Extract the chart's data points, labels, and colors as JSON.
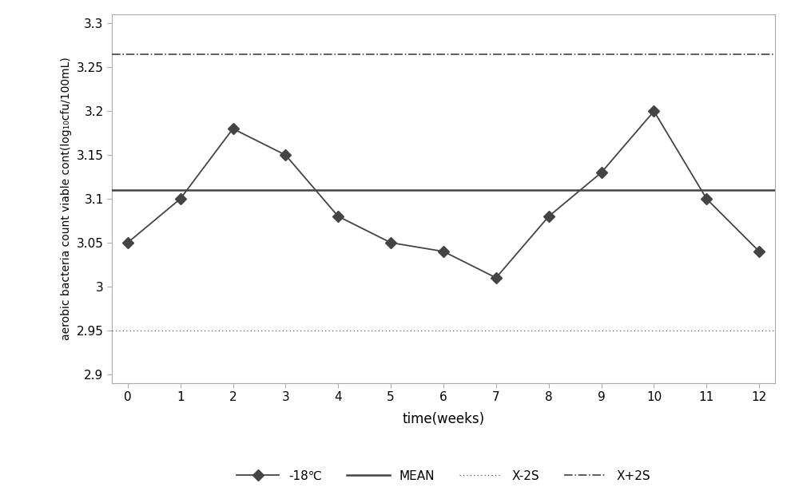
{
  "x": [
    0,
    1,
    2,
    3,
    4,
    5,
    6,
    7,
    8,
    9,
    10,
    11,
    12
  ],
  "y_data": [
    3.05,
    3.1,
    3.18,
    3.15,
    3.08,
    3.05,
    3.04,
    3.01,
    3.08,
    3.13,
    3.2,
    3.1,
    3.04
  ],
  "mean": 3.11,
  "x_minus_2s": 2.95,
  "x_plus_2s": 3.265,
  "xlim": [
    -0.3,
    12.3
  ],
  "ylim": [
    2.89,
    3.31
  ],
  "yticks": [
    2.9,
    2.95,
    3.0,
    3.05,
    3.1,
    3.15,
    3.2,
    3.25,
    3.3
  ],
  "xlabel": "time(weeks)",
  "ylabel": "aerobic bacteria count viable cont(log₁₀cfu/100mL)",
  "line_color": "#444444",
  "legend_labels": [
    "-18℃",
    "MEAN",
    "X-2S",
    "X+2S"
  ],
  "background_color": "#ffffff",
  "axis_fontsize": 12,
  "tick_fontsize": 11,
  "ylabel_fontsize": 10
}
